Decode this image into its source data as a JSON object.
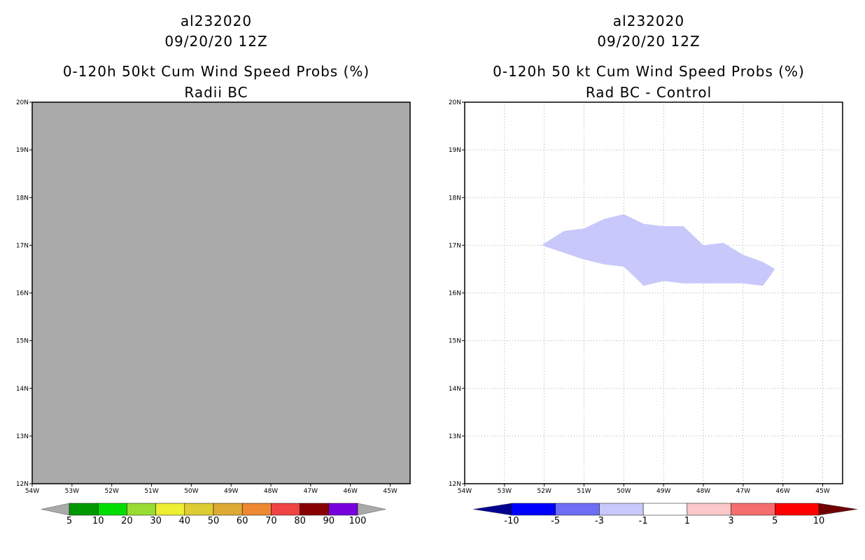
{
  "panels": [
    {
      "title_line1": "al232020",
      "title_line2": "09/20/20 12Z",
      "title_line3": "0-120h 50kt Cum Wind Speed Probs (%)",
      "title_line4": "Radii BC"
    },
    {
      "title_line1": "al232020",
      "title_line2": "09/20/20 12Z",
      "title_line3": "0-120h 50 kt Cum Wind Speed Probs (%)",
      "title_line4": "Rad BC - Control"
    }
  ],
  "colors": {
    "map_fill_left": "#aaaaaa",
    "diff_region": "#c8c8fa",
    "grid": "#aaaaaa"
  },
  "chart_data": [
    {
      "type": "heatmap",
      "title": "0-120h 50kt Cum Wind Speed Probs (%) - Radii BC",
      "xlim": [
        -54,
        -44.5
      ],
      "ylim": [
        12,
        20
      ],
      "x_ticks": [
        {
          "value": -54,
          "label": "54W"
        },
        {
          "value": -53,
          "label": "53W"
        },
        {
          "value": -52,
          "label": "52W"
        },
        {
          "value": -51,
          "label": "51W"
        },
        {
          "value": -50,
          "label": "50W"
        },
        {
          "value": -49,
          "label": "49W"
        },
        {
          "value": -48,
          "label": "48W"
        },
        {
          "value": -47,
          "label": "47W"
        },
        {
          "value": -46,
          "label": "46W"
        },
        {
          "value": -45,
          "label": "45W"
        }
      ],
      "y_ticks": [
        {
          "value": 12,
          "label": "12N"
        },
        {
          "value": 13,
          "label": "13N"
        },
        {
          "value": 14,
          "label": "14N"
        },
        {
          "value": 15,
          "label": "15N"
        },
        {
          "value": 16,
          "label": "16N"
        },
        {
          "value": 17,
          "label": "17N"
        },
        {
          "value": 18,
          "label": "18N"
        },
        {
          "value": 19,
          "label": "19N"
        },
        {
          "value": 20,
          "label": "20N"
        }
      ],
      "grid": false,
      "field": "no data (uniform gray)",
      "colorbar": {
        "labels": [
          "5",
          "10",
          "20",
          "30",
          "40",
          "50",
          "60",
          "70",
          "80",
          "90",
          "100"
        ],
        "colors": [
          "#009900",
          "#00dd00",
          "#99dd33",
          "#eeee33",
          "#ddcc33",
          "#ddaa33",
          "#ee8833",
          "#ee4444",
          "#880000",
          "#7700dd"
        ],
        "under_color": "#aaaaaa",
        "over_color": "#aaaaaa"
      }
    },
    {
      "type": "heatmap",
      "title": "0-120h 50 kt Cum Wind Speed Probs (%) - Rad BC - Control",
      "xlim": [
        -54,
        -44.5
      ],
      "ylim": [
        12,
        20
      ],
      "x_ticks": [
        {
          "value": -54,
          "label": "54W"
        },
        {
          "value": -53,
          "label": "53W"
        },
        {
          "value": -52,
          "label": "52W"
        },
        {
          "value": -51,
          "label": "51W"
        },
        {
          "value": -50,
          "label": "50W"
        },
        {
          "value": -49,
          "label": "49W"
        },
        {
          "value": -48,
          "label": "48W"
        },
        {
          "value": -47,
          "label": "47W"
        },
        {
          "value": -46,
          "label": "46W"
        },
        {
          "value": -45,
          "label": "45W"
        }
      ],
      "y_ticks": [
        {
          "value": 12,
          "label": "12N"
        },
        {
          "value": 13,
          "label": "13N"
        },
        {
          "value": 14,
          "label": "14N"
        },
        {
          "value": 15,
          "label": "15N"
        },
        {
          "value": 16,
          "label": "16N"
        },
        {
          "value": 17,
          "label": "17N"
        },
        {
          "value": 18,
          "label": "18N"
        },
        {
          "value": 19,
          "label": "19N"
        },
        {
          "value": 20,
          "label": "20N"
        }
      ],
      "grid": true,
      "region": {
        "category": "-3 to -1",
        "outline_lonlat": [
          [
            -52.07,
            17.0
          ],
          [
            -51.5,
            17.3
          ],
          [
            -51.0,
            17.35
          ],
          [
            -50.5,
            17.55
          ],
          [
            -50.0,
            17.65
          ],
          [
            -49.5,
            17.45
          ],
          [
            -49.0,
            17.4
          ],
          [
            -48.5,
            17.4
          ],
          [
            -48.0,
            17.0
          ],
          [
            -47.5,
            17.05
          ],
          [
            -47.0,
            16.8
          ],
          [
            -46.5,
            16.65
          ],
          [
            -46.2,
            16.5
          ],
          [
            -46.5,
            16.15
          ],
          [
            -47.0,
            16.2
          ],
          [
            -48.0,
            16.2
          ],
          [
            -48.5,
            16.2
          ],
          [
            -49.0,
            16.25
          ],
          [
            -49.5,
            16.15
          ],
          [
            -50.0,
            16.55
          ],
          [
            -50.5,
            16.6
          ],
          [
            -51.0,
            16.7
          ],
          [
            -52.07,
            17.0
          ]
        ]
      },
      "colorbar": {
        "labels": [
          "-10",
          "-5",
          "-3",
          "-1",
          "1",
          "3",
          "5",
          "10"
        ],
        "colors": [
          "#0000ff",
          "#6e6ef5",
          "#c8c8fa",
          "#ffffff",
          "#fac8c8",
          "#f56e6e",
          "#ff0000"
        ],
        "under_color": "#000090",
        "over_color": "#6e0000"
      }
    }
  ]
}
